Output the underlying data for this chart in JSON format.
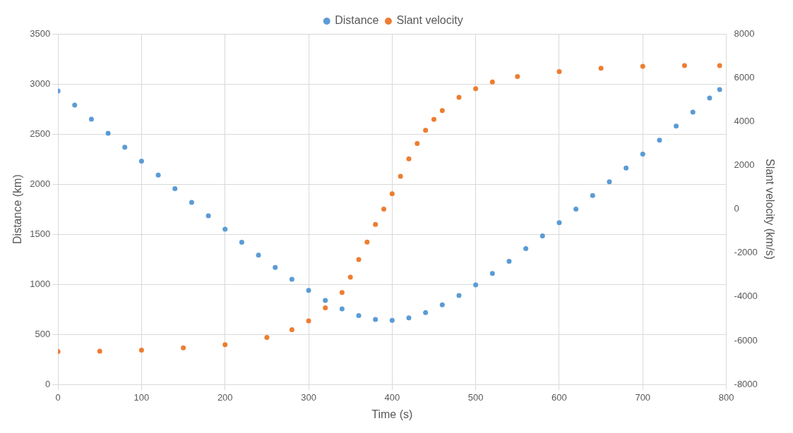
{
  "chart_data": {
    "type": "scatter",
    "xlabel": "Time (s)",
    "ylabel": "Distance (km)",
    "y2label": "Slant velocity (km/s)",
    "xlim": [
      0,
      800
    ],
    "xticks": [
      0,
      100,
      200,
      300,
      400,
      500,
      600,
      700,
      800
    ],
    "ylim": [
      0,
      3500
    ],
    "yticks": [
      0,
      500,
      1000,
      1500,
      2000,
      2500,
      3000,
      3500
    ],
    "y2lim": [
      -8000,
      8000
    ],
    "y2ticks": [
      -8000,
      -6000,
      -4000,
      -2000,
      0,
      2000,
      4000,
      6000,
      8000
    ],
    "grid": true,
    "legend": "top",
    "marker": "circle",
    "series": [
      {
        "name": "Distance",
        "color": "#5b9bd5",
        "x": [
          0,
          20,
          40,
          60,
          80,
          100,
          120,
          140,
          160,
          180,
          200,
          220,
          240,
          260,
          280,
          300,
          320,
          340,
          360,
          380,
          400,
          420,
          440,
          460,
          480,
          500,
          520,
          540,
          560,
          580,
          600,
          620,
          640,
          660,
          680,
          700,
          720,
          740,
          760,
          780,
          792
        ],
        "values": [
          2930,
          2789,
          2648,
          2508,
          2369,
          2230,
          2091,
          1954,
          1817,
          1683,
          1550,
          1419,
          1292,
          1168,
          1050,
          940,
          839,
          754,
          688,
          649,
          641,
          665,
          718,
          795,
          888,
          994,
          1108,
          1230,
          1356,
          1484,
          1616,
          1750,
          1886,
          2023,
          2160,
          2299,
          2438,
          2579,
          2719,
          2860,
          2944
        ]
      },
      {
        "name": "Slant velocity",
        "color": "#ed7d31",
        "axis": "y2",
        "x": [
          0,
          50,
          100,
          150,
          200,
          250,
          280,
          300,
          320,
          340,
          350,
          360,
          370,
          380,
          390,
          400,
          410,
          420,
          430,
          440,
          450,
          460,
          480,
          500,
          520,
          550,
          600,
          650,
          700,
          750,
          792
        ],
        "values": [
          -6500,
          -6480,
          -6430,
          -6330,
          -6180,
          -5850,
          -5500,
          -5100,
          -4500,
          -3800,
          -3100,
          -2300,
          -1500,
          -700,
          0,
          700,
          1500,
          2300,
          3000,
          3600,
          4100,
          4500,
          5100,
          5500,
          5800,
          6050,
          6280,
          6430,
          6520,
          6550,
          6550
        ]
      }
    ]
  }
}
